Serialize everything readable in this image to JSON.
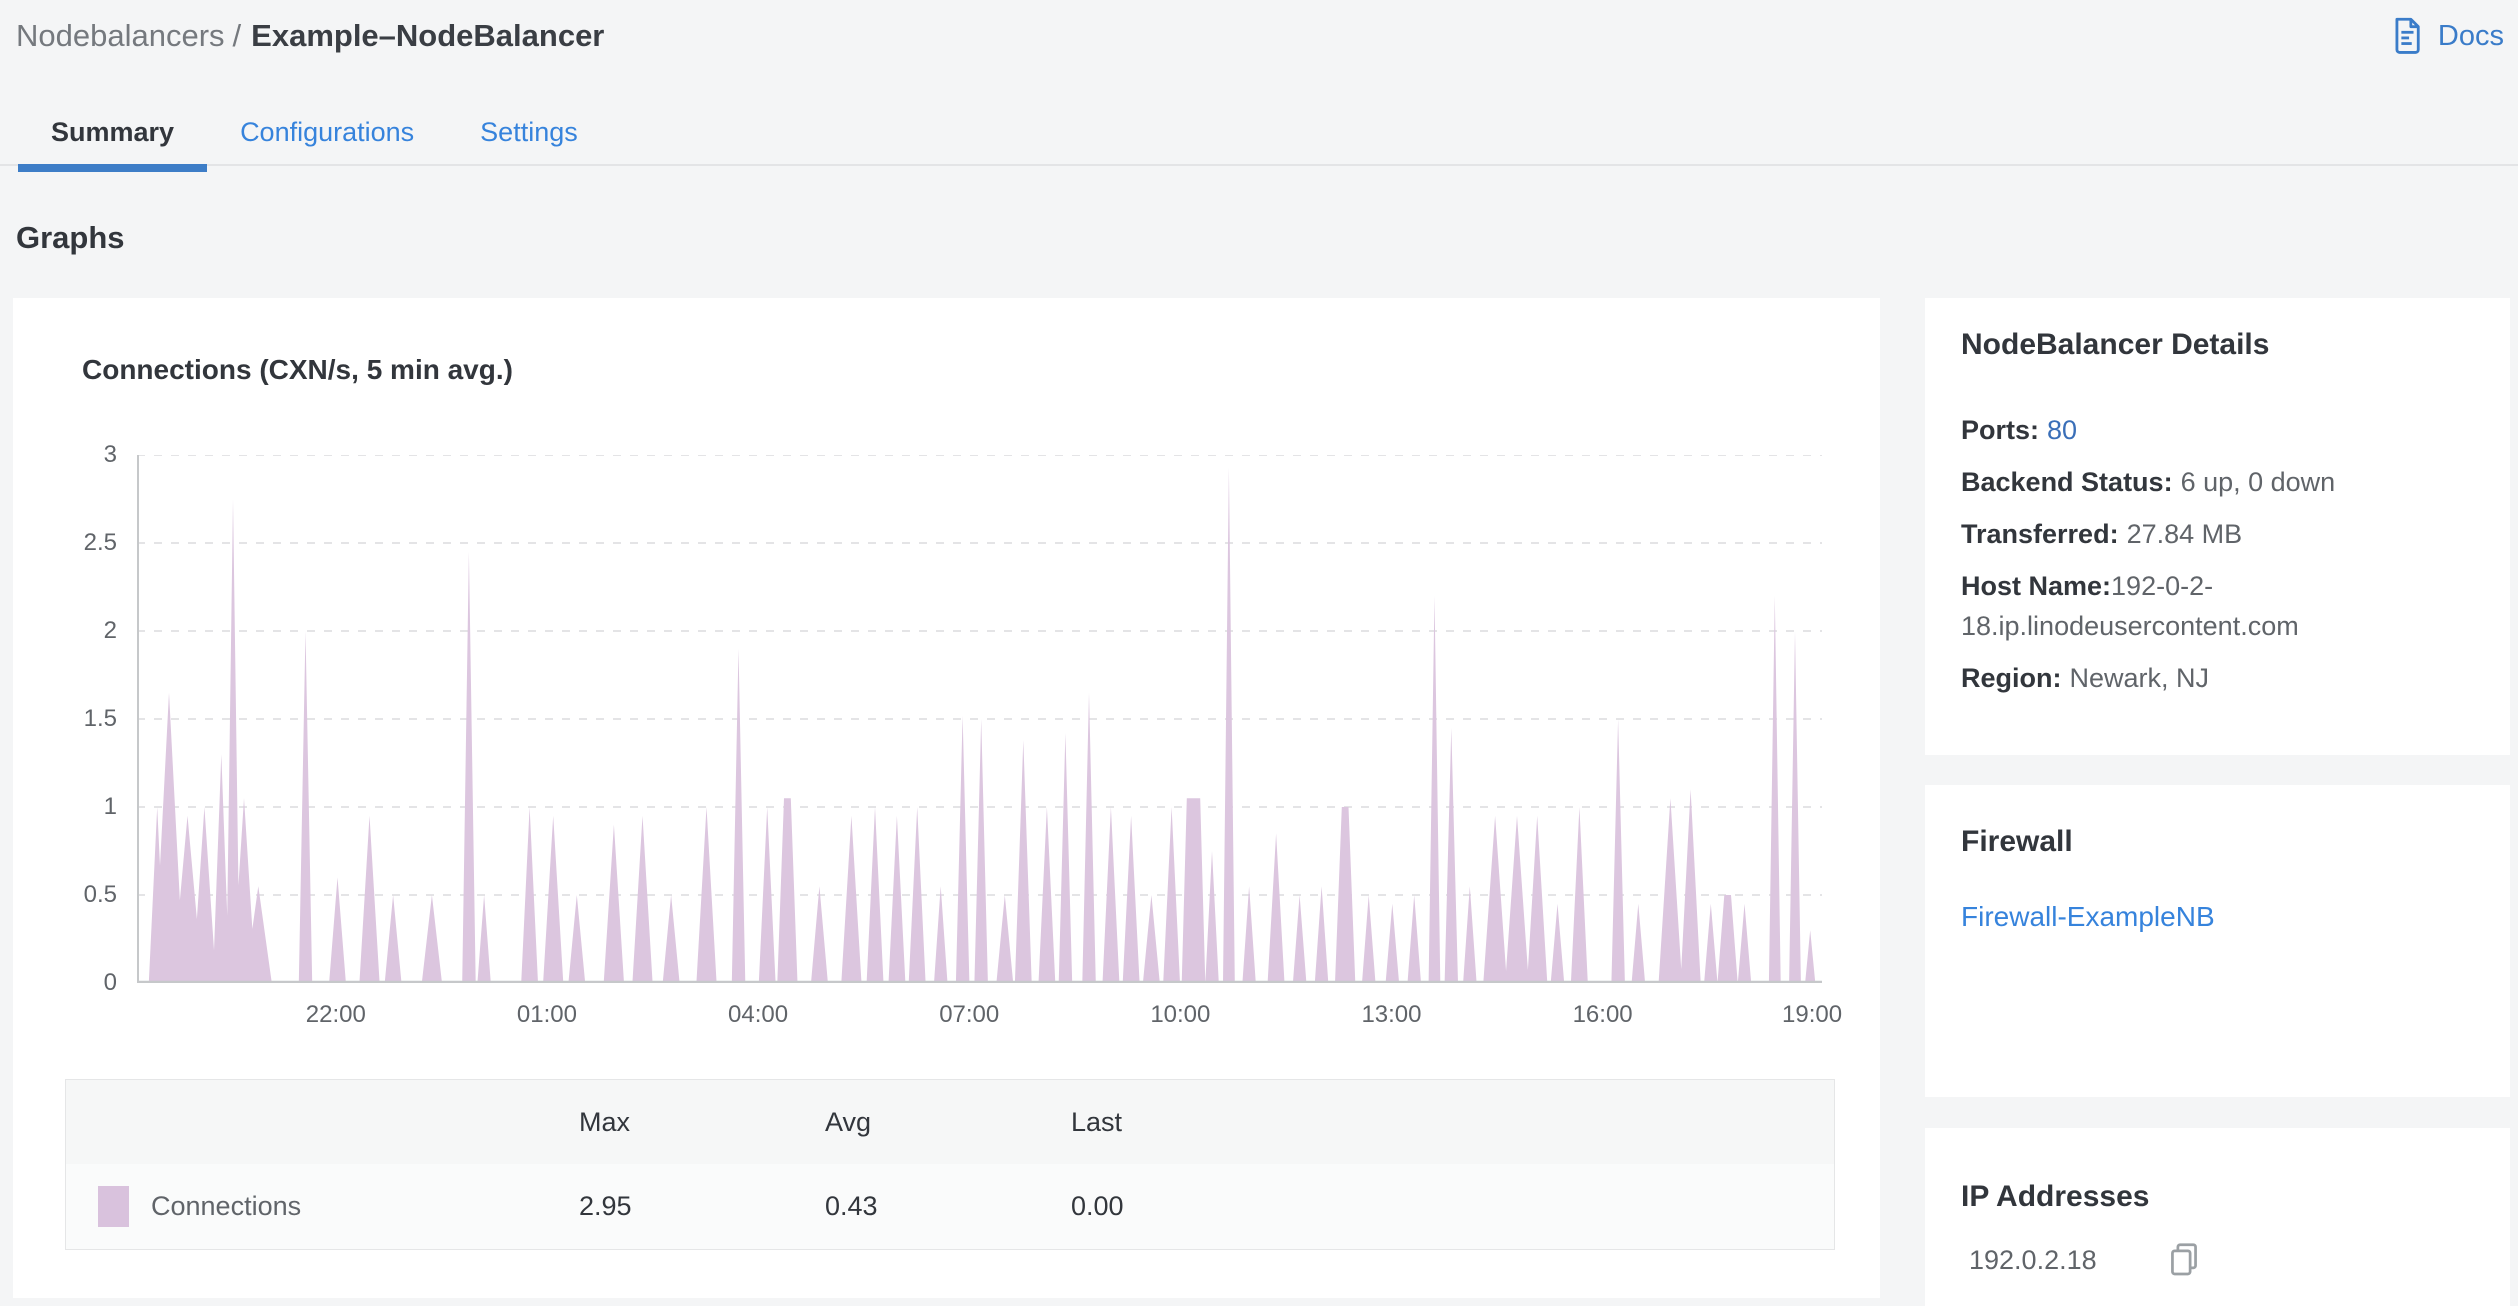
{
  "breadcrumb": {
    "section": "Nodebalancers",
    "separator": "/",
    "current": "Example–NodeBalancer"
  },
  "header": {
    "docs_label": "Docs"
  },
  "tabs": [
    {
      "label": "Summary",
      "active": true
    },
    {
      "label": "Configurations",
      "active": false
    },
    {
      "label": "Settings",
      "active": false
    }
  ],
  "page": {
    "section_heading": "Graphs"
  },
  "chart_data": {
    "type": "area",
    "title": "Connections (CXN/s, 5 min avg.)",
    "series_name": "Connections",
    "unit": "CXN/s",
    "ylim": [
      0,
      3
    ],
    "yticks": [
      0,
      0.5,
      1,
      1.5,
      2,
      2.5,
      3
    ],
    "xticks": [
      {
        "label": "22:00",
        "f": 0.118
      },
      {
        "label": "01:00",
        "f": 0.2433
      },
      {
        "label": "04:00",
        "f": 0.3686
      },
      {
        "label": "07:00",
        "f": 0.4939
      },
      {
        "label": "10:00",
        "f": 0.6192
      },
      {
        "label": "13:00",
        "f": 0.7445
      },
      {
        "label": "16:00",
        "f": 0.8698
      },
      {
        "label": "19:00",
        "f": 0.9941
      }
    ],
    "stats": {
      "max": 2.95,
      "avg": 0.43,
      "last": 0.0
    },
    "fill_color": "#dcc6df",
    "grid_on": true,
    "legend_position": "bottom",
    "spikes": [
      [
        0.012,
        1.0,
        0.005
      ],
      [
        0.019,
        1.65,
        0.009
      ],
      [
        0.03,
        0.95,
        0.009
      ],
      [
        0.04,
        1.0,
        0.007
      ],
      [
        0.05,
        1.3,
        0.005
      ],
      [
        0.057,
        2.75,
        0.004
      ],
      [
        0.0635,
        1.05,
        0.007
      ],
      [
        0.072,
        0.55,
        0.008
      ],
      [
        0.1,
        2.0,
        0.004
      ],
      [
        0.119,
        0.6,
        0.005
      ],
      [
        0.138,
        0.95,
        0.006
      ],
      [
        0.152,
        0.5,
        0.005
      ],
      [
        0.175,
        0.5,
        0.006
      ],
      [
        0.197,
        2.45,
        0.004
      ],
      [
        0.206,
        0.5,
        0.004
      ],
      [
        0.233,
        1.0,
        0.005
      ],
      [
        0.247,
        0.95,
        0.006
      ],
      [
        0.261,
        0.5,
        0.005
      ],
      [
        0.283,
        0.9,
        0.006
      ],
      [
        0.3,
        0.95,
        0.006
      ],
      [
        0.317,
        0.5,
        0.005
      ],
      [
        0.338,
        1.0,
        0.006
      ],
      [
        0.357,
        1.9,
        0.004
      ],
      [
        0.374,
        1.0,
        0.005
      ],
      [
        0.386,
        1.05,
        0.006,
        0.002
      ],
      [
        0.405,
        0.55,
        0.005
      ],
      [
        0.424,
        0.95,
        0.006
      ],
      [
        0.438,
        1.0,
        0.005
      ],
      [
        0.451,
        0.95,
        0.005
      ],
      [
        0.463,
        1.0,
        0.005
      ],
      [
        0.477,
        0.55,
        0.004
      ],
      [
        0.49,
        1.52,
        0.004
      ],
      [
        0.501,
        1.5,
        0.004
      ],
      [
        0.515,
        0.5,
        0.005
      ],
      [
        0.526,
        1.38,
        0.005
      ],
      [
        0.54,
        1.0,
        0.005
      ],
      [
        0.551,
        1.42,
        0.004
      ],
      [
        0.565,
        1.65,
        0.004
      ],
      [
        0.578,
        1.0,
        0.005
      ],
      [
        0.59,
        0.95,
        0.005
      ],
      [
        0.602,
        0.5,
        0.005
      ],
      [
        0.614,
        1.0,
        0.005
      ],
      [
        0.627,
        1.05,
        0.007,
        0.004
      ],
      [
        0.638,
        0.75,
        0.004
      ],
      [
        0.648,
        2.93,
        0.0035
      ],
      [
        0.66,
        0.55,
        0.004
      ],
      [
        0.676,
        0.85,
        0.005
      ],
      [
        0.69,
        0.5,
        0.004
      ],
      [
        0.703,
        0.55,
        0.004
      ],
      [
        0.717,
        1.0,
        0.006,
        0.002
      ],
      [
        0.731,
        0.5,
        0.004
      ],
      [
        0.745,
        0.45,
        0.004
      ],
      [
        0.758,
        0.5,
        0.004
      ],
      [
        0.77,
        2.2,
        0.0035
      ],
      [
        0.78,
        1.45,
        0.004
      ],
      [
        0.791,
        0.55,
        0.004
      ],
      [
        0.806,
        0.95,
        0.007
      ],
      [
        0.819,
        0.95,
        0.007
      ],
      [
        0.831,
        0.95,
        0.006
      ],
      [
        0.843,
        0.45,
        0.004
      ],
      [
        0.856,
        1.0,
        0.005
      ],
      [
        0.879,
        1.5,
        0.004
      ],
      [
        0.891,
        0.45,
        0.004
      ],
      [
        0.91,
        1.05,
        0.007
      ],
      [
        0.922,
        1.1,
        0.006
      ],
      [
        0.934,
        0.45,
        0.004
      ],
      [
        0.944,
        0.5,
        0.006,
        0.002
      ],
      [
        0.954,
        0.45,
        0.004
      ],
      [
        0.972,
        2.2,
        0.0035
      ],
      [
        0.984,
        2.0,
        0.0035
      ],
      [
        0.993,
        0.3,
        0.003
      ]
    ]
  },
  "legend": {
    "headers": [
      "Max",
      "Avg",
      "Last"
    ],
    "rows": [
      {
        "label": "Connections",
        "swatch_color": "#d9c2dd",
        "max": "2.95",
        "avg": "0.43",
        "last": "0.00"
      }
    ]
  },
  "details_card": {
    "title": "NodeBalancer Details",
    "rows": [
      {
        "label": "Ports:",
        "value": "80"
      },
      {
        "label": "Backend Status:",
        "value": "6 up, 0 down"
      },
      {
        "label": "Transferred:",
        "value": "27.84 MB"
      },
      {
        "label": "Host Name:",
        "value": "192-0-2-18.ip.linodeusercontent.com"
      },
      {
        "label": "Region:",
        "value": "Newark, NJ"
      }
    ]
  },
  "firewall_card": {
    "title": "Firewall",
    "link_label": "Firewall-ExampleNB"
  },
  "ip_card": {
    "title": "IP Addresses",
    "addresses": [
      {
        "ip": "192.0.2.18"
      }
    ]
  },
  "colors": {
    "accent_blue": "#3683dc",
    "link_blue": "#3a6fb8",
    "text_dark": "#32363c",
    "text_gray": "#606469",
    "page_bg": "#f4f5f6",
    "card_bg": "#ffffff",
    "chart_fill": "#dcc6df",
    "legend_swatch": "#d9c2dd",
    "grid_line": "#e4e4e6",
    "axis_line": "#c6c8ca"
  }
}
